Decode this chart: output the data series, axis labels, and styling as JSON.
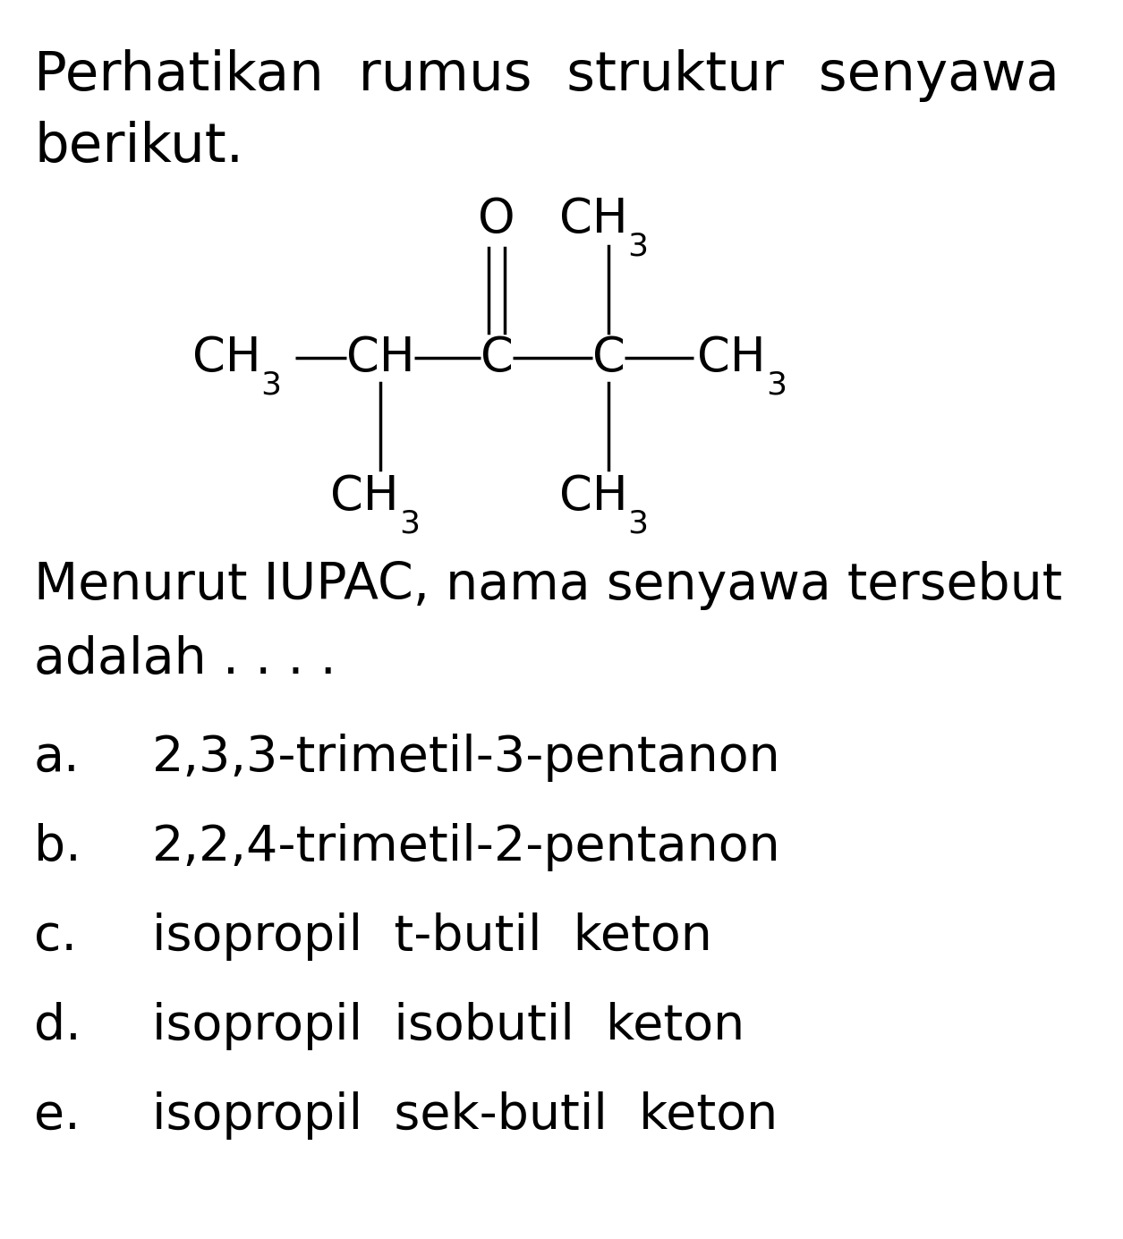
{
  "background_color": "#ffffff",
  "text_color": "#000000",
  "title_line1": "Perhatikan  rumus  struktur  senyawa",
  "title_line2": "berikut.",
  "question_line1": "Menurut IUPAC, nama senyawa tersebut",
  "question_line2": "adalah . . . .",
  "options": [
    {
      "label": "a.",
      "text": "2,3,3-trimetil-3-pentanon"
    },
    {
      "label": "b.",
      "text": "2,2,4-trimetil-2-pentanon"
    },
    {
      "label": "c.",
      "text": "isopropil  t-butil  keton"
    },
    {
      "label": "d.",
      "text": "isopropil  isobutil  keton"
    },
    {
      "label": "e.",
      "text": "isopropil  sek-butil  keton"
    }
  ],
  "fs_title": 44,
  "fs_question": 41,
  "fs_options": 40,
  "fs_formula": 38,
  "fs_sub": 26,
  "bond_lw": 2.5,
  "fig_w": 12.55,
  "fig_h": 13.85
}
